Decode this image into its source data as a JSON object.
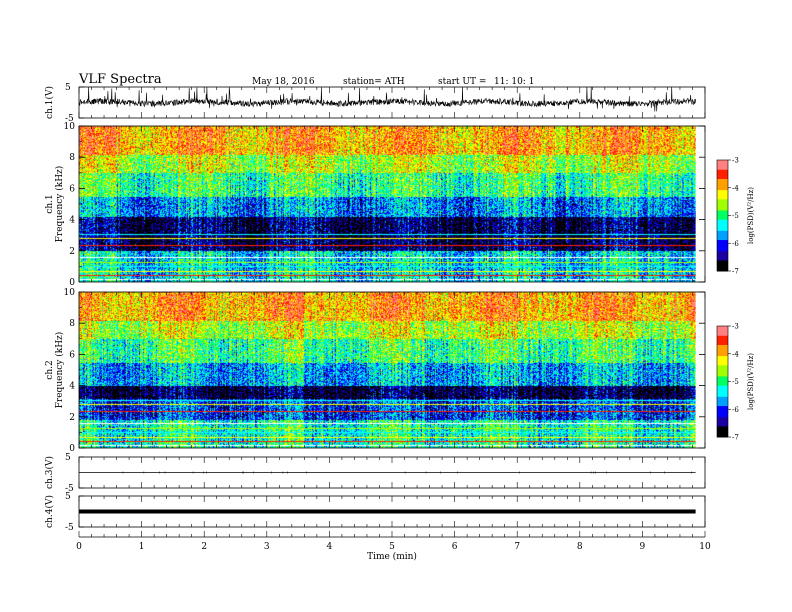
{
  "header": {
    "title": "VLF  Spectra",
    "date": "May 18, 2016",
    "station": "station= ATH",
    "start_ut_label": "start  UT  =",
    "start_ut_value": "11: 10: 1"
  },
  "chart_data": [
    {
      "type": "line",
      "panel": "ch1-waveform",
      "ylabel": "ch.1(V)",
      "ylim": [
        -5,
        5
      ],
      "y_ticks": [
        "5",
        "-5"
      ],
      "xlim": [
        0,
        10
      ],
      "x_unit": "min",
      "signal_level": 0,
      "signal_amplitude": 1.2,
      "color": "#000000"
    },
    {
      "type": "heatmap",
      "panel": "ch1-spectrogram",
      "ylabel": "Frequency  (kHz)",
      "channel_label": "ch.1",
      "ylim": [
        0,
        10
      ],
      "y_ticks": [
        "0",
        "2",
        "4",
        "6",
        "8",
        "10"
      ],
      "xlim": [
        0,
        10
      ],
      "colorbar": {
        "label": "log(PSD)(V²/Hz)",
        "range": [
          -7,
          -3
        ],
        "ticks": [
          "-7",
          "-6",
          "-5",
          "-4",
          "-3"
        ],
        "colors": [
          "#000000",
          "#1a00a0",
          "#0000ff",
          "#00a0ff",
          "#00ffff",
          "#00ff60",
          "#a0ff00",
          "#ffff00",
          "#ffa000",
          "#ff2000",
          "#ff8080",
          "#ffffff"
        ]
      },
      "bands_khz": [
        {
          "from": 0,
          "to": 2,
          "level": -5.4
        },
        {
          "from": 2,
          "to": 4.2,
          "level": -6.6
        },
        {
          "from": 4.2,
          "to": 5.5,
          "level": -5.7
        },
        {
          "from": 5.5,
          "to": 7,
          "level": -5.0
        },
        {
          "from": 7,
          "to": 8.2,
          "level": -4.5
        },
        {
          "from": 8.2,
          "to": 10,
          "level": -3.9
        }
      ]
    },
    {
      "type": "heatmap",
      "panel": "ch2-spectrogram",
      "ylabel": "Frequency  (kHz)",
      "channel_label": "ch.2",
      "ylim": [
        0,
        10
      ],
      "y_ticks": [
        "0",
        "2",
        "4",
        "6",
        "8",
        "10"
      ],
      "xlim": [
        0,
        10
      ],
      "colorbar": {
        "label": "log(PSD)(V²/Hz)",
        "range": [
          -7,
          -3
        ],
        "ticks": [
          "-7",
          "-6",
          "-5",
          "-4",
          "-3"
        ],
        "colors": [
          "#000000",
          "#1a00a0",
          "#0000ff",
          "#00a0ff",
          "#00ffff",
          "#00ff60",
          "#a0ff00",
          "#ffff00",
          "#ffa000",
          "#ff2000",
          "#ff8080",
          "#ffffff"
        ]
      },
      "bands_khz": [
        {
          "from": 0,
          "to": 1.8,
          "level": -5.2
        },
        {
          "from": 1.8,
          "to": 3.2,
          "level": -6.0
        },
        {
          "from": 3.2,
          "to": 4.0,
          "level": -6.7
        },
        {
          "from": 4.0,
          "to": 5.5,
          "level": -5.6
        },
        {
          "from": 5.5,
          "to": 7,
          "level": -5.0
        },
        {
          "from": 7,
          "to": 8.2,
          "level": -4.5
        },
        {
          "from": 8.2,
          "to": 10,
          "level": -3.9
        }
      ]
    },
    {
      "type": "line",
      "panel": "ch3-waveform",
      "ylabel": "ch.3(V)",
      "ylim": [
        -5,
        5
      ],
      "y_ticks": [
        "5",
        "-5"
      ],
      "xlim": [
        0,
        10
      ],
      "signal_level": 0,
      "signal_amplitude": 0,
      "color": "#000000"
    },
    {
      "type": "line",
      "panel": "ch4-waveform",
      "ylabel": "ch.4(V)",
      "ylim": [
        -5,
        5
      ],
      "y_ticks": [
        "5",
        "-5"
      ],
      "xlim": [
        0,
        10
      ],
      "signal_level": 0,
      "signal_amplitude": 0,
      "color": "#000000"
    }
  ],
  "x_axis": {
    "label": "Time  (min)",
    "ticks": [
      "0",
      "1",
      "2",
      "3",
      "4",
      "5",
      "6",
      "7",
      "8",
      "9",
      "10"
    ],
    "data_end_min": 9.85
  }
}
